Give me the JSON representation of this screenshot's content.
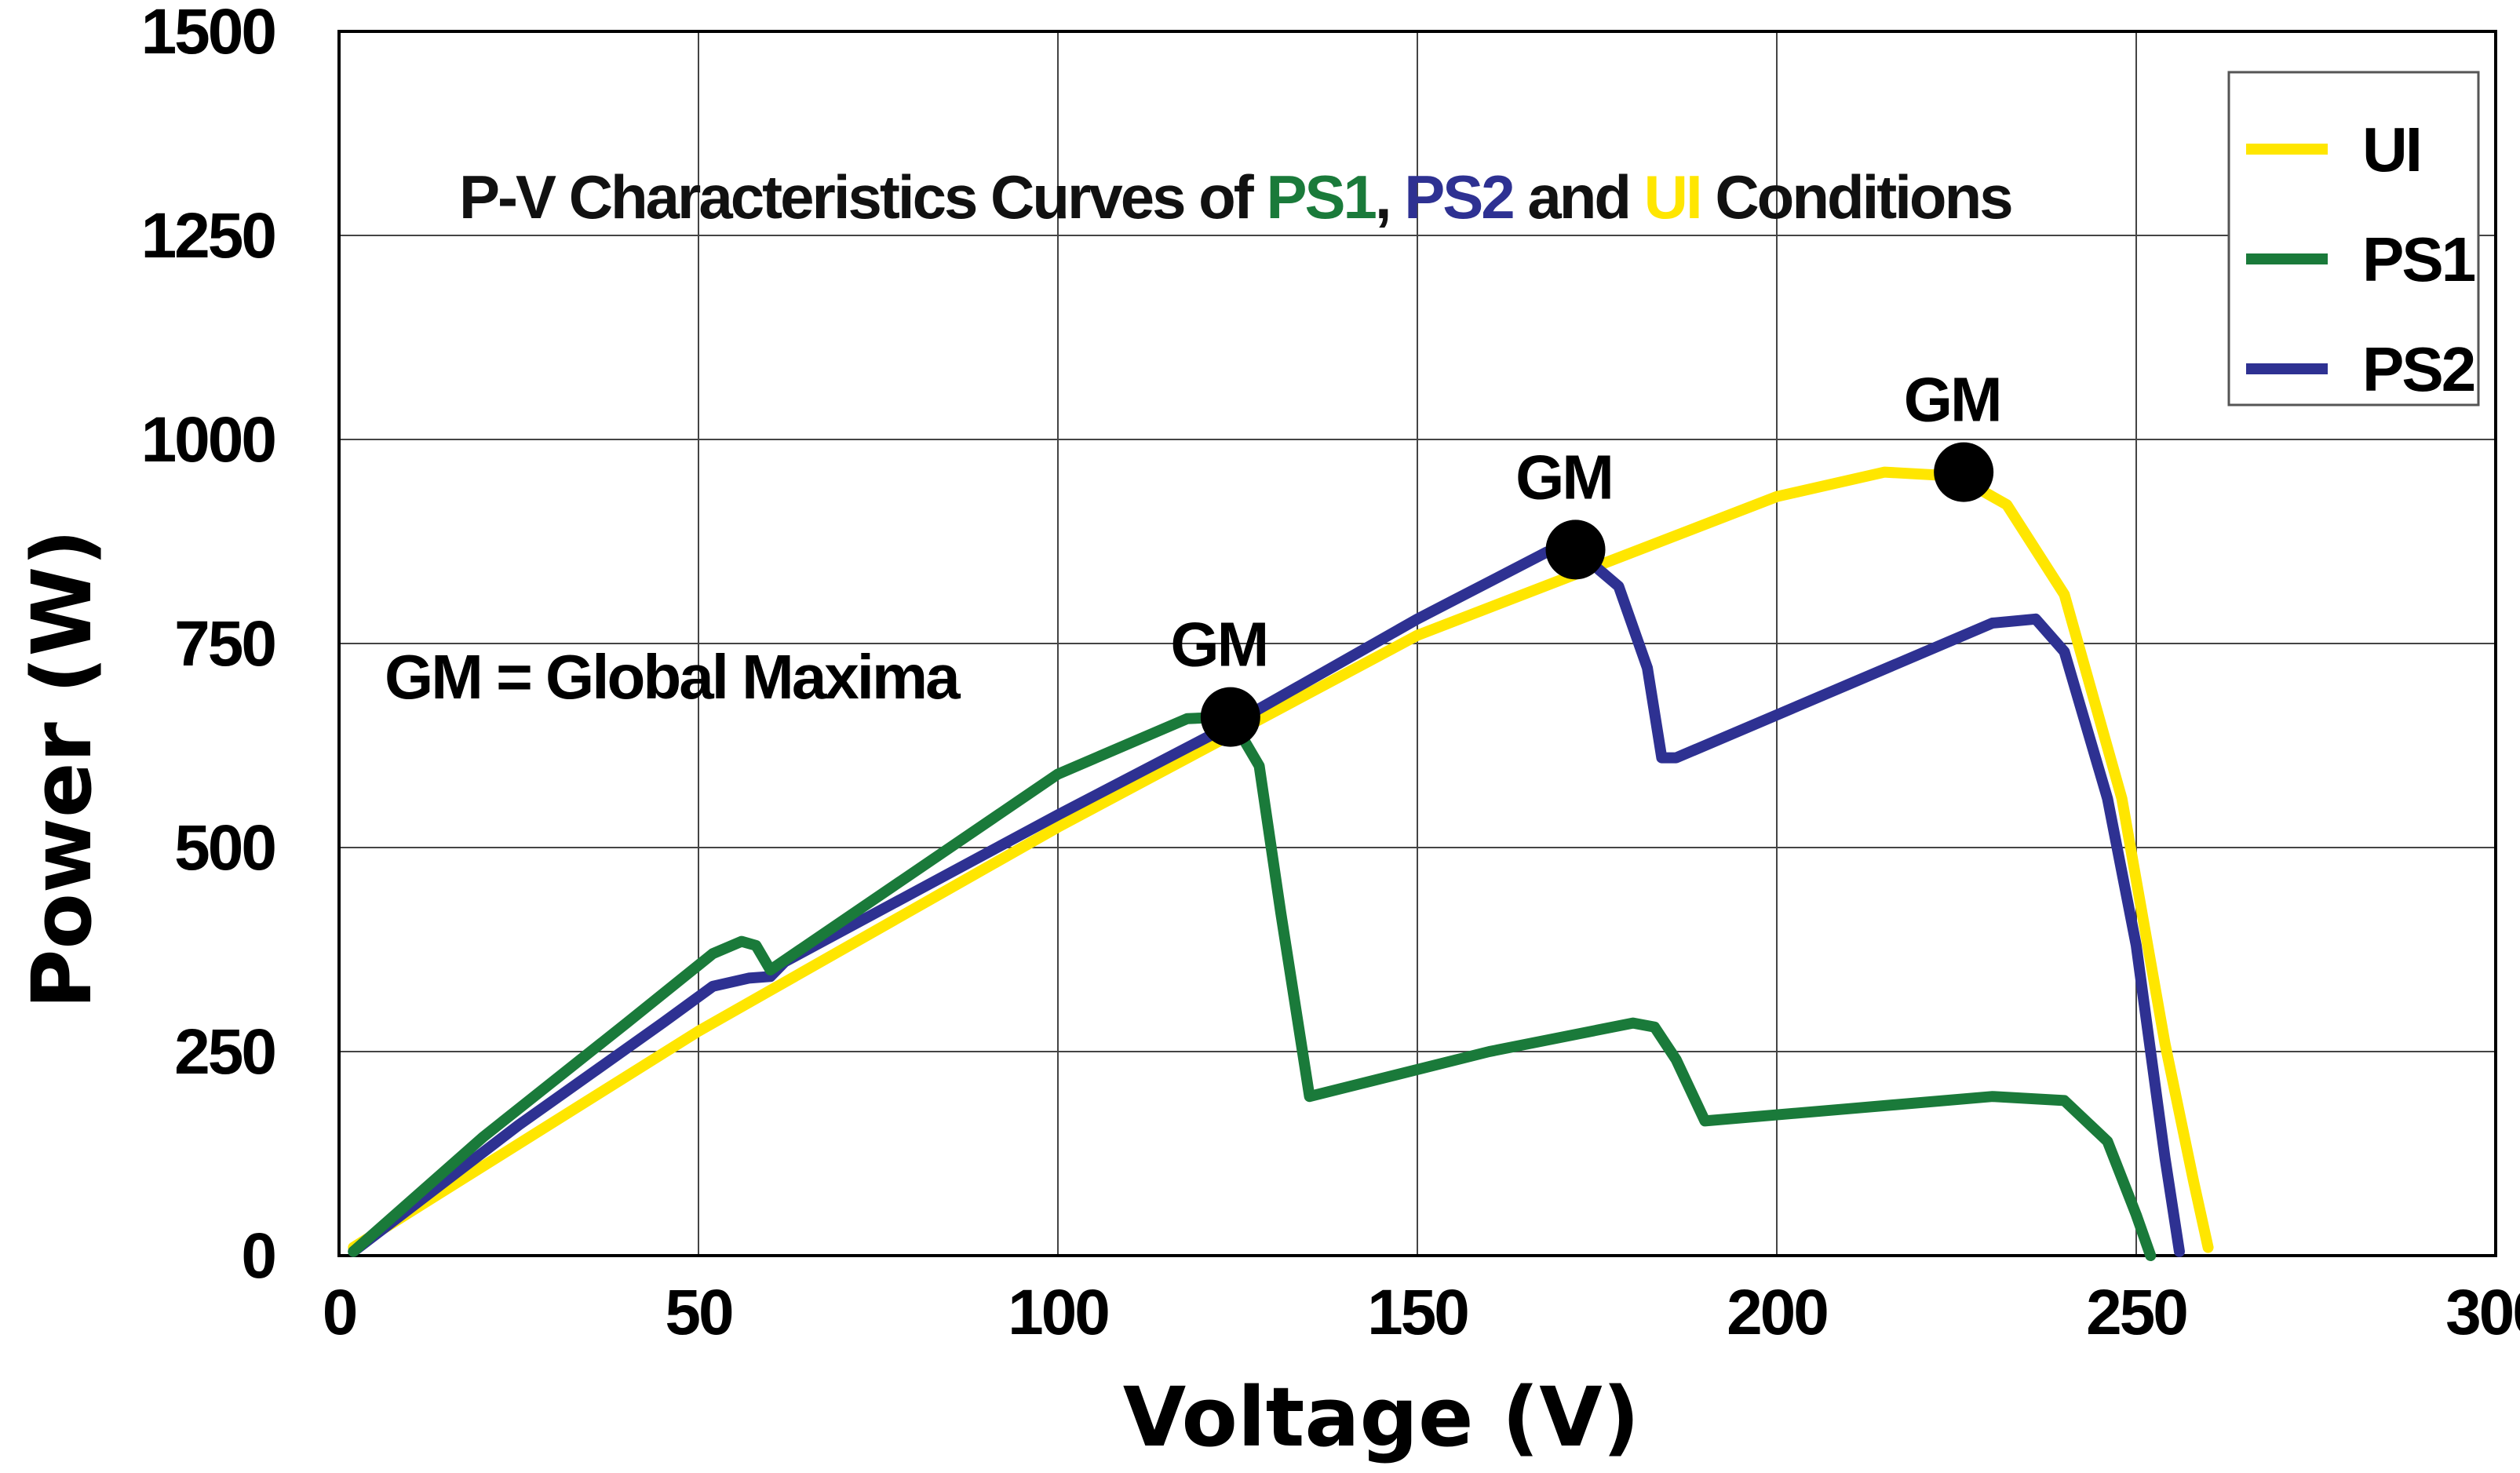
{
  "chart_data": {
    "type": "line",
    "title_parts": [
      {
        "text": "P-V Characteristics Curves of ",
        "color": "#111111"
      },
      {
        "text": "PS1",
        "color": "#1a7a3a"
      },
      {
        "text": ", ",
        "color": "#111111"
      },
      {
        "text": "PS2",
        "color": "#2e3192"
      },
      {
        "text": " and ",
        "color": "#111111"
      },
      {
        "text": "UI",
        "color": "#ffe600"
      },
      {
        "text": " Conditions",
        "color": "#111111"
      }
    ],
    "xlabel": "Voltage (V)",
    "ylabel": "Power (W)",
    "xlim": [
      0,
      300
    ],
    "ylim": [
      0,
      1500
    ],
    "x_ticks": [
      "0",
      "50",
      "100",
      "150",
      "200",
      "250",
      "300"
    ],
    "y_ticks": [
      "0",
      "250",
      "500",
      "750",
      "1000",
      "1250",
      "1500"
    ],
    "grid": true,
    "annotation": "GM = Global Maxima",
    "legend": {
      "position": "top-right",
      "items": [
        "UI",
        "PS1",
        "PS2"
      ]
    },
    "series": [
      {
        "name": "UI",
        "color": "#ffe600",
        "points": [
          [
            2,
            10
          ],
          [
            50,
            275
          ],
          [
            100,
            525
          ],
          [
            150,
            760
          ],
          [
            200,
            930
          ],
          [
            215,
            960
          ],
          [
            225,
            955
          ],
          [
            232,
            920
          ],
          [
            240,
            810
          ],
          [
            248,
            560
          ],
          [
            254,
            260
          ],
          [
            258,
            90
          ],
          [
            260,
            10
          ]
        ]
      },
      {
        "name": "PS1",
        "color": "#1a7a3a",
        "points": [
          [
            2,
            5
          ],
          [
            20,
            145
          ],
          [
            40,
            285
          ],
          [
            52,
            370
          ],
          [
            56,
            385
          ],
          [
            58,
            380
          ],
          [
            60,
            350
          ],
          [
            100,
            590
          ],
          [
            118,
            658
          ],
          [
            124,
            660
          ],
          [
            128,
            600
          ],
          [
            131,
            420
          ],
          [
            135,
            195
          ],
          [
            160,
            250
          ],
          [
            180,
            285
          ],
          [
            183,
            280
          ],
          [
            186,
            240
          ],
          [
            190,
            165
          ],
          [
            210,
            180
          ],
          [
            230,
            195
          ],
          [
            240,
            190
          ],
          [
            246,
            140
          ],
          [
            250,
            50
          ],
          [
            252,
            0
          ]
        ]
      },
      {
        "name": "PS2",
        "color": "#2e3192",
        "points": [
          [
            2,
            5
          ],
          [
            25,
            160
          ],
          [
            45,
            285
          ],
          [
            52,
            330
          ],
          [
            57,
            340
          ],
          [
            60,
            342
          ],
          [
            62,
            360
          ],
          [
            100,
            540
          ],
          [
            124,
            650
          ],
          [
            150,
            780
          ],
          [
            168,
            862
          ],
          [
            172,
            865
          ],
          [
            178,
            820
          ],
          [
            182,
            720
          ],
          [
            184,
            610
          ],
          [
            186,
            610
          ],
          [
            210,
            700
          ],
          [
            230,
            775
          ],
          [
            236,
            780
          ],
          [
            240,
            740
          ],
          [
            246,
            560
          ],
          [
            250,
            380
          ],
          [
            254,
            120
          ],
          [
            256,
            5
          ]
        ]
      }
    ],
    "markers": [
      {
        "series": "PS1",
        "label": "GM",
        "x": 124,
        "y": 660
      },
      {
        "series": "PS2",
        "label": "GM",
        "x": 172,
        "y": 865
      },
      {
        "series": "UI",
        "label": "GM",
        "x": 226,
        "y": 960
      }
    ]
  }
}
